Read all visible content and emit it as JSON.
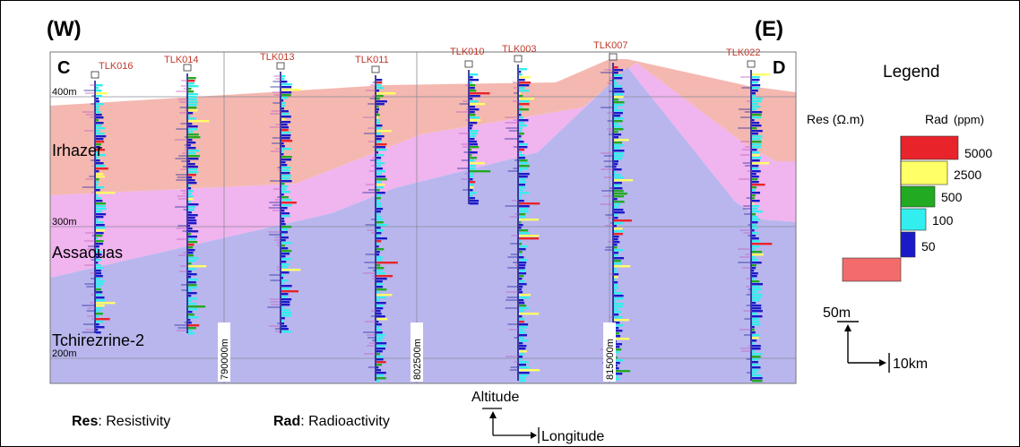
{
  "header": {
    "west": "(W)",
    "east": "(E)"
  },
  "section": {
    "start": "C",
    "end": "D"
  },
  "wells": [
    {
      "id": "TLK016"
    },
    {
      "id": "TLK014"
    },
    {
      "id": "TLK013"
    },
    {
      "id": "TLK011"
    },
    {
      "id": "TLK010"
    },
    {
      "id": "TLK003"
    },
    {
      "id": "TLK007"
    },
    {
      "id": "TLK022"
    }
  ],
  "formations": [
    {
      "name": "Irhazer",
      "color": "#f4b8b0"
    },
    {
      "name": "Assaouas",
      "color": "#f0b4ee"
    },
    {
      "name": "Tchirezrine-2",
      "color": "#b9b6ee"
    }
  ],
  "altitudes": [
    "400m",
    "300m",
    "200m"
  ],
  "longitudes": [
    "790000m",
    "802500m",
    "815000m"
  ],
  "legend": {
    "title": "Legend",
    "res_label": "Res (Ω.m)",
    "rad_label": "Rad",
    "rad_unit": "(ppm)",
    "classes": [
      {
        "value": "5000",
        "color": "#e8242a"
      },
      {
        "value": "2500",
        "color": "#ffff66"
      },
      {
        "value": "500",
        "color": "#22aa22"
      },
      {
        "value": "100",
        "color": "#33eeee"
      },
      {
        "value": "50",
        "color": "#1a1ac8"
      }
    ],
    "res_color": "#f26c6c",
    "vertical_scale": "50m",
    "horizontal_scale": "10km"
  },
  "axes_key": {
    "vertical": "Altitude",
    "horizontal": "Longitude"
  },
  "footnotes": [
    {
      "abbr": "Res",
      "text": ": Resistivity"
    },
    {
      "abbr": "Rad",
      "text": ": Radioactivity"
    }
  ]
}
